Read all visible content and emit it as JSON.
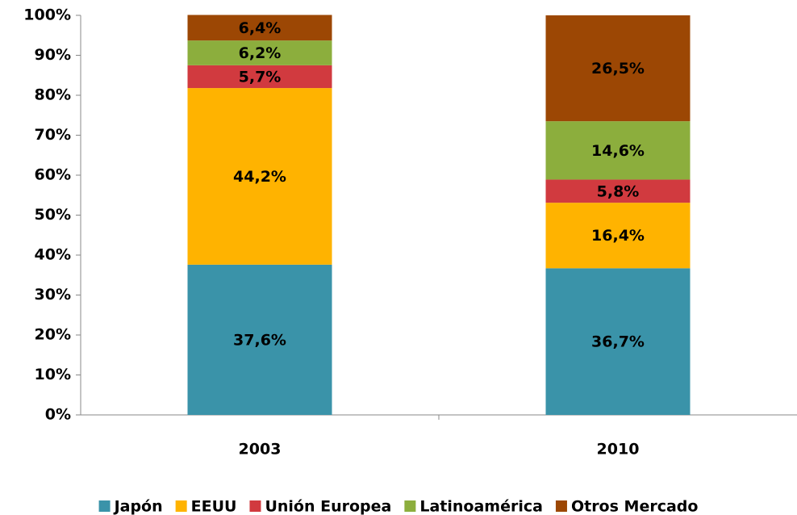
{
  "chart_data": {
    "type": "stacked_bar",
    "categories": [
      "2003",
      "2010"
    ],
    "series": [
      {
        "name": "Japón",
        "color": "#3a93a9",
        "values": [
          37.6,
          36.7
        ],
        "value_labels": [
          "37,6%",
          "36,7%"
        ]
      },
      {
        "name": "EEUU",
        "color": "#ffb300",
        "values": [
          44.2,
          16.4
        ],
        "value_labels": [
          "44,2%",
          "16,4%"
        ]
      },
      {
        "name": "Unión Europea",
        "color": "#d13a3f",
        "values": [
          5.7,
          5.8
        ],
        "value_labels": [
          "5,7%",
          "5,8%"
        ]
      },
      {
        "name": "Latinoamérica",
        "color": "#8cae3d",
        "values": [
          6.2,
          14.6
        ],
        "value_labels": [
          "6,2%",
          "14,6%"
        ]
      },
      {
        "name": "Otros Mercado",
        "color": "#9c4704",
        "values": [
          6.4,
          26.5
        ],
        "value_labels": [
          "6,4%",
          "26,5%"
        ]
      }
    ],
    "ylim": [
      0,
      100
    ],
    "yticks": [
      {
        "value": 0,
        "label": "0%"
      },
      {
        "value": 10,
        "label": "10%"
      },
      {
        "value": 20,
        "label": "20%"
      },
      {
        "value": 30,
        "label": "30%"
      },
      {
        "value": 40,
        "label": "40%"
      },
      {
        "value": 50,
        "label": "50%"
      },
      {
        "value": 60,
        "label": "60%"
      },
      {
        "value": 70,
        "label": "70%"
      },
      {
        "value": 80,
        "label": "80%"
      },
      {
        "value": 90,
        "label": "90%"
      },
      {
        "value": 100,
        "label": "100%"
      }
    ],
    "grid": false,
    "legend": "bottom"
  }
}
